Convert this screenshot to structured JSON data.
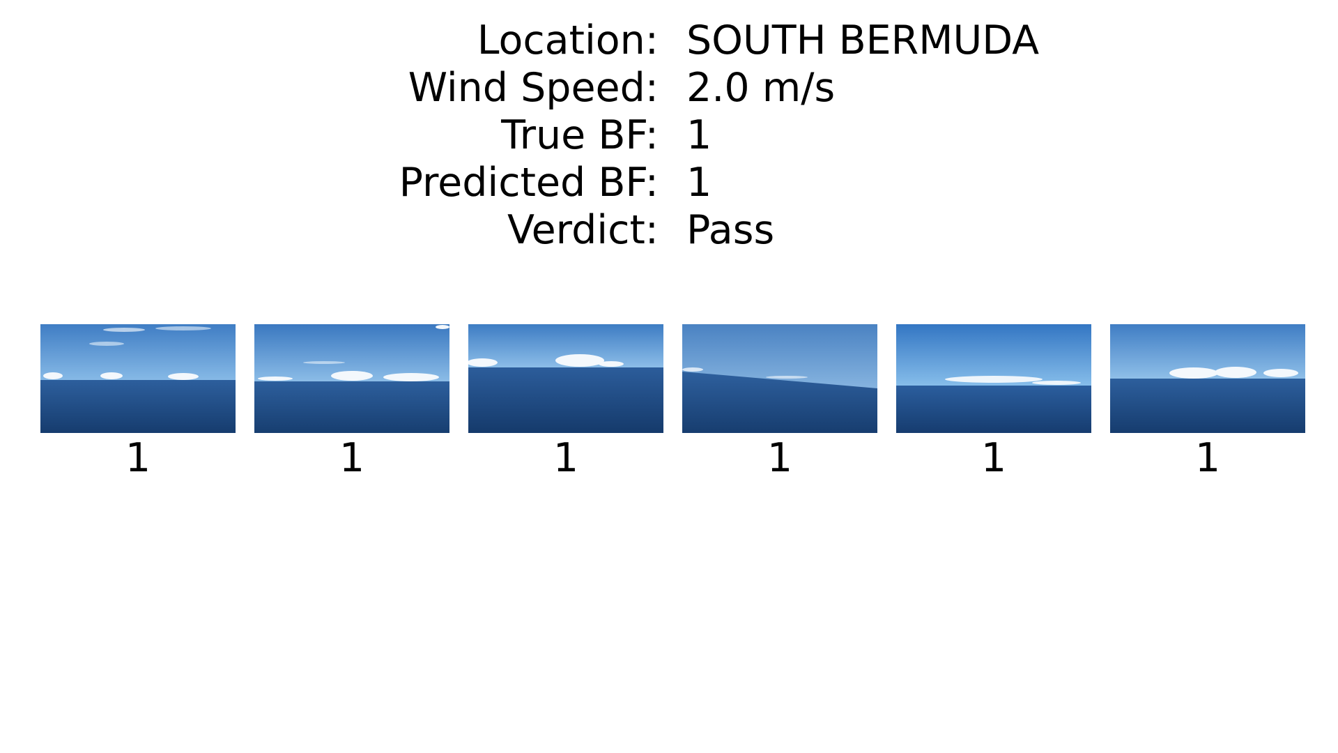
{
  "info": [
    {
      "label": "Location:",
      "value": "SOUTH BERMUDA"
    },
    {
      "label": "Wind Speed:",
      "value": "2.0 m/s"
    },
    {
      "label": "True BF:",
      "value": "1"
    },
    {
      "label": "Predicted BF:",
      "value": "1"
    },
    {
      "label": "Verdict:",
      "value": "Pass"
    }
  ],
  "thumbnails": [
    {
      "caption": "1",
      "image": "ocean-horizon-photo"
    },
    {
      "caption": "1",
      "image": "ocean-horizon-photo"
    },
    {
      "caption": "1",
      "image": "ocean-horizon-photo"
    },
    {
      "caption": "1",
      "image": "ocean-horizon-photo"
    },
    {
      "caption": "1",
      "image": "ocean-horizon-photo"
    },
    {
      "caption": "1",
      "image": "ocean-horizon-photo"
    }
  ],
  "colors": {
    "sky_top": "#3f7dc4",
    "sky_bottom": "#7fb3e3",
    "sea_top": "#2b5c9a",
    "sea_bottom": "#163c6e",
    "cloud": "#f4f8fc"
  }
}
